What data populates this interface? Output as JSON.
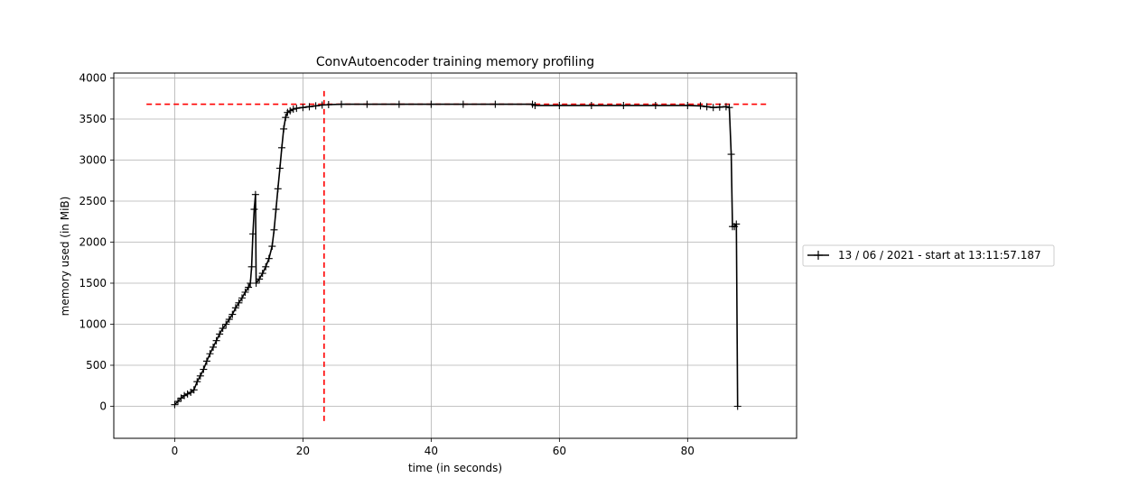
{
  "chart_data": {
    "type": "line",
    "title": "ConvAutoencoder training memory profiling",
    "xlabel": "time (in seconds)",
    "ylabel": "memory used (in MiB)",
    "xlim": [
      -9.5,
      97
    ],
    "ylim": [
      -390,
      4060
    ],
    "x_ticks": [
      0,
      20,
      40,
      60,
      80
    ],
    "y_ticks": [
      0,
      500,
      1000,
      1500,
      2000,
      2500,
      3000,
      3500,
      4000
    ],
    "grid": true,
    "legend_position": "right",
    "series": [
      {
        "name": "13 / 06 / 2021 - start at 13:11:57.187",
        "color": "#000000",
        "marker": "plus",
        "points": [
          [
            0,
            20
          ],
          [
            0.5,
            60
          ],
          [
            1,
            100
          ],
          [
            1.5,
            130
          ],
          [
            2,
            150
          ],
          [
            2.5,
            170
          ],
          [
            3,
            200
          ],
          [
            3.5,
            300
          ],
          [
            4,
            370
          ],
          [
            4.5,
            450
          ],
          [
            5,
            550
          ],
          [
            5.5,
            640
          ],
          [
            6,
            720
          ],
          [
            6.5,
            800
          ],
          [
            7,
            880
          ],
          [
            7.5,
            950
          ],
          [
            8,
            1000
          ],
          [
            8.5,
            1060
          ],
          [
            9,
            1120
          ],
          [
            9.5,
            1200
          ],
          [
            10,
            1260
          ],
          [
            10.5,
            1320
          ],
          [
            11,
            1390
          ],
          [
            11.5,
            1450
          ],
          [
            11.8,
            1500
          ],
          [
            12,
            1700
          ],
          [
            12.2,
            2100
          ],
          [
            12.4,
            2400
          ],
          [
            12.6,
            2580
          ],
          [
            12.7,
            1500
          ],
          [
            13.2,
            1550
          ],
          [
            13.7,
            1620
          ],
          [
            14.2,
            1700
          ],
          [
            14.7,
            1800
          ],
          [
            15.2,
            1950
          ],
          [
            15.5,
            2150
          ],
          [
            15.8,
            2400
          ],
          [
            16.1,
            2650
          ],
          [
            16.4,
            2900
          ],
          [
            16.7,
            3150
          ],
          [
            17,
            3380
          ],
          [
            17.3,
            3520
          ],
          [
            17.6,
            3580
          ],
          [
            18,
            3600
          ],
          [
            18.5,
            3620
          ],
          [
            19,
            3630
          ],
          [
            20,
            3640
          ],
          [
            21,
            3650
          ],
          [
            22,
            3660
          ],
          [
            23,
            3670
          ],
          [
            24,
            3675
          ],
          [
            26,
            3680
          ],
          [
            30,
            3680
          ],
          [
            35,
            3680
          ],
          [
            40,
            3680
          ],
          [
            45,
            3680
          ],
          [
            50,
            3680
          ],
          [
            55.8,
            3680
          ],
          [
            56.2,
            3665
          ],
          [
            60,
            3665
          ],
          [
            65,
            3665
          ],
          [
            70,
            3665
          ],
          [
            75,
            3665
          ],
          [
            80,
            3665
          ],
          [
            82,
            3660
          ],
          [
            83,
            3650
          ],
          [
            84,
            3640
          ],
          [
            85,
            3645
          ],
          [
            86,
            3650
          ],
          [
            86.5,
            3640
          ],
          [
            86.8,
            3070
          ],
          [
            87,
            2190
          ],
          [
            87.3,
            2190
          ],
          [
            87.6,
            2220
          ],
          [
            87.8,
            0
          ]
        ]
      }
    ],
    "reference_lines": [
      {
        "orientation": "horizontal",
        "y": 3680,
        "x_from": -4.4,
        "x_to": 92.4,
        "color": "#ff0000",
        "style": "dashed"
      },
      {
        "orientation": "vertical",
        "x": 23.3,
        "y_from": -180,
        "y_to": 3860,
        "color": "#ff0000",
        "style": "dashed"
      }
    ]
  }
}
